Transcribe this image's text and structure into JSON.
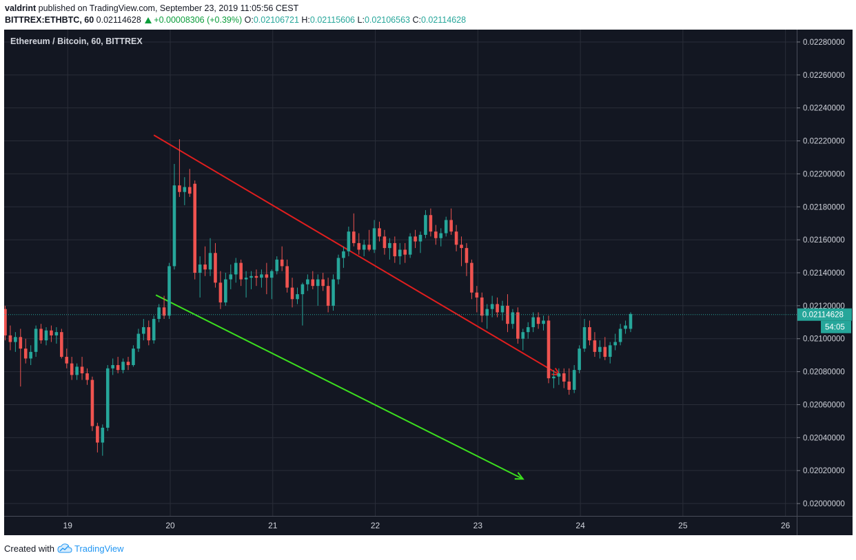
{
  "header": {
    "author": "valdrint",
    "published_text": "published on TradingView.com, September 23, 2019 11:05:56 CEST",
    "symbol": "BITTREX:ETHBTC, 60",
    "last_price": "0.02114628",
    "change": "+0.00008306 (+0.39%)",
    "open_label": "O:",
    "open": "0.02106721",
    "high_label": "H:",
    "high": "0.02115606",
    "low_label": "L:",
    "low": "0.02106563",
    "close_label": "C:",
    "close": "0.02114628"
  },
  "footer": {
    "created_with": "Created with",
    "brand": "TradingView"
  },
  "colors": {
    "background": "#131722",
    "grid": "#2a2e39",
    "up": "#26a69a",
    "down": "#ef5350",
    "resistance_line": "#e01e1e",
    "support_line": "#3ce01e",
    "price_tag": "#26a69a"
  },
  "chart_data": {
    "type": "candlestick",
    "title": "Ethereum / Bitcoin, 60, BITTREX",
    "x_ticks": [
      "19",
      "20",
      "21",
      "22",
      "23",
      "24",
      "25",
      "26"
    ],
    "y_ticks": [
      "0.02280000",
      "0.02260000",
      "0.02240000",
      "0.02220000",
      "0.02200000",
      "0.02180000",
      "0.02160000",
      "0.02140000",
      "0.02120000",
      "0.02100000",
      "0.02080000",
      "0.02060000",
      "0.02040000",
      "0.02020000",
      "0.02000000"
    ],
    "ylim": [
      0.019925,
      0.022875
    ],
    "x_unit": "days since Sep 18, 2019 00:00 (Sep 19 = 1)",
    "xlim": [
      0.38,
      8.11
    ],
    "current_price_label": "0.02114628",
    "countdown_label": "54:05",
    "candles": [
      {
        "t": 0.39,
        "o": 0.02118,
        "h": 0.0212,
        "l": 0.02099,
        "c": 0.02102
      },
      {
        "t": 0.44,
        "o": 0.02102,
        "h": 0.02108,
        "l": 0.02093,
        "c": 0.02098
      },
      {
        "t": 0.49,
        "o": 0.02098,
        "h": 0.02104,
        "l": 0.02092,
        "c": 0.02101
      },
      {
        "t": 0.54,
        "o": 0.02101,
        "h": 0.02106,
        "l": 0.02071,
        "c": 0.02094
      },
      {
        "t": 0.59,
        "o": 0.02094,
        "h": 0.021,
        "l": 0.02085,
        "c": 0.02088
      },
      {
        "t": 0.64,
        "o": 0.02088,
        "h": 0.02096,
        "l": 0.02084,
        "c": 0.02092
      },
      {
        "t": 0.69,
        "o": 0.02092,
        "h": 0.02108,
        "l": 0.02089,
        "c": 0.02106
      },
      {
        "t": 0.74,
        "o": 0.02106,
        "h": 0.02109,
        "l": 0.02097,
        "c": 0.02099
      },
      {
        "t": 0.79,
        "o": 0.02099,
        "h": 0.02107,
        "l": 0.02096,
        "c": 0.02105
      },
      {
        "t": 0.84,
        "o": 0.02105,
        "h": 0.02108,
        "l": 0.02098,
        "c": 0.02102
      },
      {
        "t": 0.89,
        "o": 0.02102,
        "h": 0.02107,
        "l": 0.02097,
        "c": 0.02104
      },
      {
        "t": 0.94,
        "o": 0.02104,
        "h": 0.02106,
        "l": 0.02088,
        "c": 0.02089
      },
      {
        "t": 0.99,
        "o": 0.02089,
        "h": 0.02094,
        "l": 0.02082,
        "c": 0.02085
      },
      {
        "t": 1.04,
        "o": 0.02085,
        "h": 0.02089,
        "l": 0.02075,
        "c": 0.02078
      },
      {
        "t": 1.09,
        "o": 0.02078,
        "h": 0.02085,
        "l": 0.02075,
        "c": 0.02083
      },
      {
        "t": 1.14,
        "o": 0.02083,
        "h": 0.02089,
        "l": 0.02075,
        "c": 0.02079
      },
      {
        "t": 1.19,
        "o": 0.02079,
        "h": 0.02082,
        "l": 0.02072,
        "c": 0.02075
      },
      {
        "t": 1.24,
        "o": 0.02075,
        "h": 0.02077,
        "l": 0.02044,
        "c": 0.02047
      },
      {
        "t": 1.29,
        "o": 0.02047,
        "h": 0.02049,
        "l": 0.02031,
        "c": 0.02037
      },
      {
        "t": 1.34,
        "o": 0.02037,
        "h": 0.02048,
        "l": 0.02029,
        "c": 0.02046
      },
      {
        "t": 1.39,
        "o": 0.02046,
        "h": 0.02084,
        "l": 0.02044,
        "c": 0.02082
      },
      {
        "t": 1.44,
        "o": 0.02082,
        "h": 0.02088,
        "l": 0.02078,
        "c": 0.02084
      },
      {
        "t": 1.49,
        "o": 0.02084,
        "h": 0.02089,
        "l": 0.02079,
        "c": 0.02081
      },
      {
        "t": 1.54,
        "o": 0.02081,
        "h": 0.02088,
        "l": 0.02079,
        "c": 0.02086
      },
      {
        "t": 1.59,
        "o": 0.02086,
        "h": 0.02089,
        "l": 0.02081,
        "c": 0.02084
      },
      {
        "t": 1.64,
        "o": 0.02084,
        "h": 0.02096,
        "l": 0.02083,
        "c": 0.02094
      },
      {
        "t": 1.69,
        "o": 0.02094,
        "h": 0.02106,
        "l": 0.02092,
        "c": 0.02103
      },
      {
        "t": 1.74,
        "o": 0.02103,
        "h": 0.02112,
        "l": 0.02099,
        "c": 0.02107
      },
      {
        "t": 1.79,
        "o": 0.02107,
        "h": 0.02111,
        "l": 0.02096,
        "c": 0.02099
      },
      {
        "t": 1.84,
        "o": 0.02099,
        "h": 0.02114,
        "l": 0.02097,
        "c": 0.02112
      },
      {
        "t": 1.89,
        "o": 0.02112,
        "h": 0.02121,
        "l": 0.0211,
        "c": 0.02119
      },
      {
        "t": 1.94,
        "o": 0.02119,
        "h": 0.02126,
        "l": 0.02112,
        "c": 0.02114
      },
      {
        "t": 1.99,
        "o": 0.02114,
        "h": 0.02146,
        "l": 0.02112,
        "c": 0.02144
      },
      {
        "t": 2.04,
        "o": 0.02144,
        "h": 0.02206,
        "l": 0.02142,
        "c": 0.02193
      },
      {
        "t": 2.09,
        "o": 0.02193,
        "h": 0.02221,
        "l": 0.02186,
        "c": 0.02189
      },
      {
        "t": 2.14,
        "o": 0.02189,
        "h": 0.02198,
        "l": 0.02181,
        "c": 0.02192
      },
      {
        "t": 2.19,
        "o": 0.02192,
        "h": 0.02203,
        "l": 0.02186,
        "c": 0.02188
      },
      {
        "t": 2.24,
        "o": 0.02194,
        "h": 0.02196,
        "l": 0.02136,
        "c": 0.0214
      },
      {
        "t": 2.29,
        "o": 0.0214,
        "h": 0.0215,
        "l": 0.02125,
        "c": 0.02145
      },
      {
        "t": 2.34,
        "o": 0.02145,
        "h": 0.02156,
        "l": 0.02138,
        "c": 0.02142
      },
      {
        "t": 2.39,
        "o": 0.02142,
        "h": 0.02161,
        "l": 0.02138,
        "c": 0.02152
      },
      {
        "t": 2.44,
        "o": 0.02152,
        "h": 0.02158,
        "l": 0.02131,
        "c": 0.02134
      },
      {
        "t": 2.49,
        "o": 0.02134,
        "h": 0.02141,
        "l": 0.02118,
        "c": 0.02122
      },
      {
        "t": 2.54,
        "o": 0.02122,
        "h": 0.0214,
        "l": 0.0212,
        "c": 0.02136
      },
      {
        "t": 2.59,
        "o": 0.02136,
        "h": 0.02145,
        "l": 0.0213,
        "c": 0.02139
      },
      {
        "t": 2.64,
        "o": 0.02139,
        "h": 0.02149,
        "l": 0.02134,
        "c": 0.02146
      },
      {
        "t": 2.69,
        "o": 0.02146,
        "h": 0.02148,
        "l": 0.02132,
        "c": 0.02136
      },
      {
        "t": 2.74,
        "o": 0.02136,
        "h": 0.02141,
        "l": 0.02125,
        "c": 0.02137
      },
      {
        "t": 2.79,
        "o": 0.02137,
        "h": 0.02141,
        "l": 0.0213,
        "c": 0.02138
      },
      {
        "t": 2.84,
        "o": 0.02138,
        "h": 0.02142,
        "l": 0.02132,
        "c": 0.02137
      },
      {
        "t": 2.89,
        "o": 0.02137,
        "h": 0.02142,
        "l": 0.02131,
        "c": 0.02139
      },
      {
        "t": 2.94,
        "o": 0.02139,
        "h": 0.02146,
        "l": 0.02127,
        "c": 0.02137
      },
      {
        "t": 2.99,
        "o": 0.02137,
        "h": 0.02142,
        "l": 0.02124,
        "c": 0.02141
      },
      {
        "t": 3.04,
        "o": 0.02141,
        "h": 0.0215,
        "l": 0.02139,
        "c": 0.02148
      },
      {
        "t": 3.09,
        "o": 0.02148,
        "h": 0.02156,
        "l": 0.02141,
        "c": 0.02144
      },
      {
        "t": 3.14,
        "o": 0.02144,
        "h": 0.02148,
        "l": 0.02128,
        "c": 0.02131
      },
      {
        "t": 3.19,
        "o": 0.02131,
        "h": 0.02137,
        "l": 0.02119,
        "c": 0.02124
      },
      {
        "t": 3.24,
        "o": 0.02124,
        "h": 0.02131,
        "l": 0.02121,
        "c": 0.02127
      },
      {
        "t": 3.29,
        "o": 0.02127,
        "h": 0.02134,
        "l": 0.02108,
        "c": 0.02133
      },
      {
        "t": 3.34,
        "o": 0.02133,
        "h": 0.02139,
        "l": 0.02129,
        "c": 0.02136
      },
      {
        "t": 3.39,
        "o": 0.02136,
        "h": 0.02141,
        "l": 0.0213,
        "c": 0.02132
      },
      {
        "t": 3.44,
        "o": 0.02132,
        "h": 0.02139,
        "l": 0.0212,
        "c": 0.02136
      },
      {
        "t": 3.49,
        "o": 0.02136,
        "h": 0.0214,
        "l": 0.02129,
        "c": 0.02132
      },
      {
        "t": 3.54,
        "o": 0.02132,
        "h": 0.02137,
        "l": 0.02116,
        "c": 0.0212
      },
      {
        "t": 3.59,
        "o": 0.0212,
        "h": 0.02139,
        "l": 0.02117,
        "c": 0.02136
      },
      {
        "t": 3.64,
        "o": 0.02136,
        "h": 0.02151,
        "l": 0.02133,
        "c": 0.02149
      },
      {
        "t": 3.69,
        "o": 0.02149,
        "h": 0.02156,
        "l": 0.02143,
        "c": 0.02153
      },
      {
        "t": 3.74,
        "o": 0.02153,
        "h": 0.02168,
        "l": 0.0215,
        "c": 0.02165
      },
      {
        "t": 3.79,
        "o": 0.02165,
        "h": 0.02176,
        "l": 0.02156,
        "c": 0.02158
      },
      {
        "t": 3.84,
        "o": 0.02158,
        "h": 0.02164,
        "l": 0.02151,
        "c": 0.02154
      },
      {
        "t": 3.89,
        "o": 0.02154,
        "h": 0.0216,
        "l": 0.0215,
        "c": 0.02157
      },
      {
        "t": 3.94,
        "o": 0.02157,
        "h": 0.02166,
        "l": 0.02153,
        "c": 0.02154
      },
      {
        "t": 3.99,
        "o": 0.02154,
        "h": 0.02172,
        "l": 0.02152,
        "c": 0.02167
      },
      {
        "t": 4.04,
        "o": 0.02167,
        "h": 0.02171,
        "l": 0.02159,
        "c": 0.02162
      },
      {
        "t": 4.09,
        "o": 0.02162,
        "h": 0.02166,
        "l": 0.02151,
        "c": 0.02155
      },
      {
        "t": 4.14,
        "o": 0.02155,
        "h": 0.02161,
        "l": 0.02148,
        "c": 0.02158
      },
      {
        "t": 4.19,
        "o": 0.02158,
        "h": 0.02162,
        "l": 0.02146,
        "c": 0.0215
      },
      {
        "t": 4.24,
        "o": 0.0215,
        "h": 0.02158,
        "l": 0.02145,
        "c": 0.02154
      },
      {
        "t": 4.29,
        "o": 0.02154,
        "h": 0.02158,
        "l": 0.02146,
        "c": 0.02151
      },
      {
        "t": 4.34,
        "o": 0.02151,
        "h": 0.02164,
        "l": 0.02149,
        "c": 0.02162
      },
      {
        "t": 4.39,
        "o": 0.02162,
        "h": 0.02166,
        "l": 0.02155,
        "c": 0.02159
      },
      {
        "t": 4.44,
        "o": 0.02159,
        "h": 0.02165,
        "l": 0.02152,
        "c": 0.02163
      },
      {
        "t": 4.49,
        "o": 0.02163,
        "h": 0.02178,
        "l": 0.02161,
        "c": 0.02175
      },
      {
        "t": 4.54,
        "o": 0.02175,
        "h": 0.02179,
        "l": 0.02162,
        "c": 0.02165
      },
      {
        "t": 4.59,
        "o": 0.02165,
        "h": 0.02169,
        "l": 0.02157,
        "c": 0.02161
      },
      {
        "t": 4.64,
        "o": 0.02161,
        "h": 0.02167,
        "l": 0.02156,
        "c": 0.02164
      },
      {
        "t": 4.69,
        "o": 0.02164,
        "h": 0.02174,
        "l": 0.02162,
        "c": 0.02172
      },
      {
        "t": 4.74,
        "o": 0.02172,
        "h": 0.02179,
        "l": 0.02163,
        "c": 0.02165
      },
      {
        "t": 4.79,
        "o": 0.02165,
        "h": 0.02169,
        "l": 0.02153,
        "c": 0.02157
      },
      {
        "t": 4.84,
        "o": 0.02157,
        "h": 0.02162,
        "l": 0.02144,
        "c": 0.02155
      },
      {
        "t": 4.89,
        "o": 0.02155,
        "h": 0.02158,
        "l": 0.02138,
        "c": 0.02146
      },
      {
        "t": 4.94,
        "o": 0.02146,
        "h": 0.02148,
        "l": 0.02124,
        "c": 0.02128
      },
      {
        "t": 4.99,
        "o": 0.02128,
        "h": 0.02132,
        "l": 0.02116,
        "c": 0.02125
      },
      {
        "t": 5.04,
        "o": 0.02125,
        "h": 0.02128,
        "l": 0.0211,
        "c": 0.02114
      },
      {
        "t": 5.09,
        "o": 0.02114,
        "h": 0.02121,
        "l": 0.02106,
        "c": 0.02118
      },
      {
        "t": 5.14,
        "o": 0.02118,
        "h": 0.02126,
        "l": 0.02113,
        "c": 0.02121
      },
      {
        "t": 5.19,
        "o": 0.02121,
        "h": 0.02125,
        "l": 0.02113,
        "c": 0.02116
      },
      {
        "t": 5.24,
        "o": 0.02116,
        "h": 0.02123,
        "l": 0.02111,
        "c": 0.0212
      },
      {
        "t": 5.29,
        "o": 0.0212,
        "h": 0.02127,
        "l": 0.02104,
        "c": 0.02109
      },
      {
        "t": 5.34,
        "o": 0.02109,
        "h": 0.02118,
        "l": 0.02106,
        "c": 0.02116
      },
      {
        "t": 5.39,
        "o": 0.02116,
        "h": 0.02119,
        "l": 0.02097,
        "c": 0.021
      },
      {
        "t": 5.44,
        "o": 0.021,
        "h": 0.02106,
        "l": 0.02093,
        "c": 0.02104
      },
      {
        "t": 5.49,
        "o": 0.02104,
        "h": 0.0211,
        "l": 0.021,
        "c": 0.02107
      },
      {
        "t": 5.54,
        "o": 0.02107,
        "h": 0.02116,
        "l": 0.02104,
        "c": 0.02113
      },
      {
        "t": 5.59,
        "o": 0.02113,
        "h": 0.02116,
        "l": 0.02106,
        "c": 0.02109
      },
      {
        "t": 5.64,
        "o": 0.02109,
        "h": 0.02114,
        "l": 0.02105,
        "c": 0.02111
      },
      {
        "t": 5.69,
        "o": 0.02111,
        "h": 0.02114,
        "l": 0.02073,
        "c": 0.02076
      },
      {
        "t": 5.74,
        "o": 0.02076,
        "h": 0.02081,
        "l": 0.0207,
        "c": 0.02077
      },
      {
        "t": 5.79,
        "o": 0.02077,
        "h": 0.02082,
        "l": 0.02072,
        "c": 0.02079
      },
      {
        "t": 5.84,
        "o": 0.02079,
        "h": 0.02082,
        "l": 0.0207,
        "c": 0.02074
      },
      {
        "t": 5.89,
        "o": 0.02074,
        "h": 0.02082,
        "l": 0.02066,
        "c": 0.02069
      },
      {
        "t": 5.94,
        "o": 0.02069,
        "h": 0.02084,
        "l": 0.02067,
        "c": 0.02081
      },
      {
        "t": 5.99,
        "o": 0.02081,
        "h": 0.02096,
        "l": 0.02079,
        "c": 0.02094
      },
      {
        "t": 6.04,
        "o": 0.02094,
        "h": 0.02112,
        "l": 0.02092,
        "c": 0.02107
      },
      {
        "t": 6.09,
        "o": 0.02107,
        "h": 0.02111,
        "l": 0.02096,
        "c": 0.02099
      },
      {
        "t": 6.14,
        "o": 0.02099,
        "h": 0.02104,
        "l": 0.02089,
        "c": 0.02092
      },
      {
        "t": 6.19,
        "o": 0.02092,
        "h": 0.02099,
        "l": 0.02088,
        "c": 0.02095
      },
      {
        "t": 6.24,
        "o": 0.02095,
        "h": 0.02101,
        "l": 0.02087,
        "c": 0.02089
      },
      {
        "t": 6.29,
        "o": 0.02089,
        "h": 0.02098,
        "l": 0.02085,
        "c": 0.02096
      },
      {
        "t": 6.34,
        "o": 0.02096,
        "h": 0.02103,
        "l": 0.02093,
        "c": 0.02098
      },
      {
        "t": 6.39,
        "o": 0.02098,
        "h": 0.02109,
        "l": 0.02096,
        "c": 0.02106
      },
      {
        "t": 6.44,
        "o": 0.02106,
        "h": 0.02111,
        "l": 0.02103,
        "c": 0.02108
      },
      {
        "t": 6.49,
        "o": 0.02106,
        "h": 0.02116,
        "l": 0.02104,
        "c": 0.02115
      }
    ],
    "trendlines": [
      {
        "name": "resistance",
        "color": "#e01e1e",
        "x1": 1.84,
        "y1": 0.022235,
        "x2": 5.8,
        "y2": 0.02078
      },
      {
        "name": "support",
        "color": "#3ce01e",
        "x1": 1.86,
        "y1": 0.021265,
        "x2": 5.44,
        "y2": 0.020149
      }
    ]
  }
}
